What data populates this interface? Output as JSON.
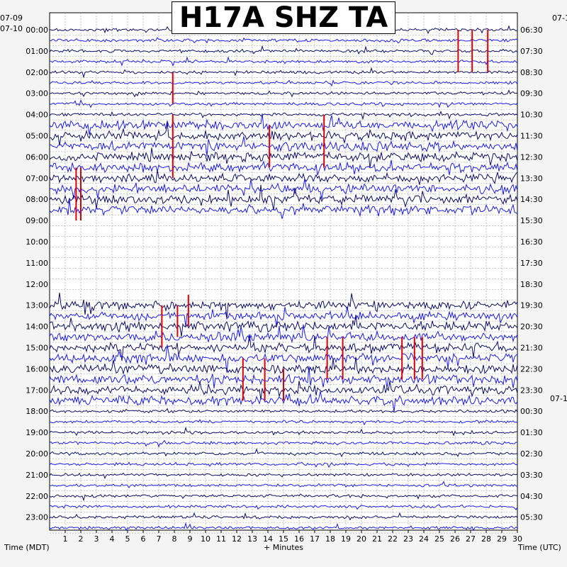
{
  "title": "H17A SHZ TA",
  "date_labels": {
    "left_top": "07-09",
    "left_bottom": "07-10",
    "right_top": "07-1",
    "right_mid": "07-1"
  },
  "axis_labels": {
    "left": "Time (MDT)",
    "bottom": "+ Minutes",
    "right": "Time (UTC)"
  },
  "colors": {
    "trace_dark": "#0b0b6b",
    "trace_blue": "#1a1aff",
    "event": "#e00000",
    "grid": "#9a9a9a",
    "background": "#ffffff"
  },
  "chart_data": {
    "type": "heatmap",
    "x_ticks": [
      "1",
      "2",
      "3",
      "4",
      "5",
      "6",
      "7",
      "8",
      "9",
      "10",
      "11",
      "12",
      "13",
      "14",
      "15",
      "16",
      "17",
      "18",
      "19",
      "20",
      "21",
      "22",
      "23",
      "24",
      "25",
      "26",
      "27",
      "28",
      "29",
      "30"
    ],
    "xlim": [
      0,
      30
    ],
    "left_hours": [
      "00:00",
      "01:00",
      "02:00",
      "03:00",
      "04:00",
      "05:00",
      "06:00",
      "07:00",
      "08:00",
      "09:00",
      "10:00",
      "11:00",
      "12:00",
      "13:00",
      "14:00",
      "15:00",
      "16:00",
      "17:00",
      "18:00",
      "19:00",
      "20:00",
      "21:00",
      "22:00",
      "23:00"
    ],
    "right_hours": [
      "06:30",
      "07:30",
      "08:30",
      "09:30",
      "10:30",
      "11:30",
      "12:30",
      "13:30",
      "14:30",
      "15:30",
      "16:30",
      "17:30",
      "18:30",
      "19:30",
      "20:30",
      "21:30",
      "22:30",
      "23:30",
      "00:30",
      "01:30",
      "02:30",
      "03:30",
      "04:30",
      "05:30"
    ],
    "rows_per_hour": 2,
    "gap_rows": [
      18,
      19,
      20,
      21,
      22,
      23,
      24,
      25
    ],
    "event_marks": [
      {
        "row": 1,
        "minute": 26.2,
        "len": 3
      },
      {
        "row": 1,
        "minute": 27.1,
        "len": 3
      },
      {
        "row": 1,
        "minute": 28.1,
        "len": 3
      },
      {
        "row": 5,
        "minute": 7.9,
        "len": 2
      },
      {
        "row": 9,
        "minute": 7.9,
        "len": 5
      },
      {
        "row": 9,
        "minute": 17.6,
        "len": 4
      },
      {
        "row": 10,
        "minute": 14.1,
        "len": 3
      },
      {
        "row": 14,
        "minute": 1.7,
        "len": 4
      },
      {
        "row": 14,
        "minute": 2.0,
        "len": 4
      },
      {
        "row": 26,
        "minute": 8.9,
        "len": 2
      },
      {
        "row": 27,
        "minute": 7.2,
        "len": 3
      },
      {
        "row": 27,
        "minute": 8.2,
        "len": 2
      },
      {
        "row": 30,
        "minute": 17.8,
        "len": 3
      },
      {
        "row": 30,
        "minute": 18.8,
        "len": 3
      },
      {
        "row": 30,
        "minute": 22.6,
        "len": 3
      },
      {
        "row": 30,
        "minute": 23.4,
        "len": 3
      },
      {
        "row": 30,
        "minute": 23.9,
        "len": 3
      },
      {
        "row": 32,
        "minute": 12.4,
        "len": 3
      },
      {
        "row": 32,
        "minute": 13.8,
        "len": 3
      },
      {
        "row": 33,
        "minute": 15.0,
        "len": 2
      }
    ]
  }
}
